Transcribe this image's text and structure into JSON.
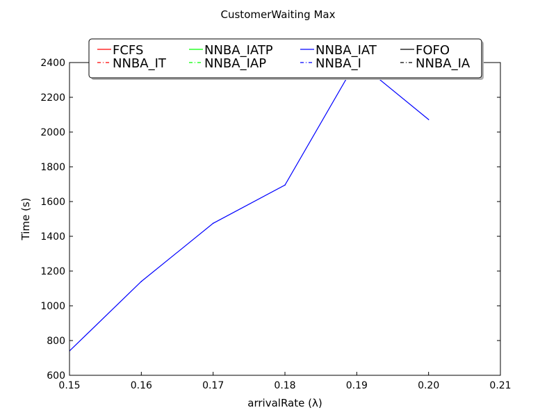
{
  "chart_data": {
    "type": "line",
    "title": "CustomerWaiting Max",
    "xlabel": "arrivalRate (λ)",
    "ylabel": "Time (s)",
    "xlim": [
      0.15,
      0.21
    ],
    "ylim": [
      600,
      2400
    ],
    "xticks": [
      "0.15",
      "0.16",
      "0.17",
      "0.18",
      "0.19",
      "0.20",
      "0.21"
    ],
    "yticks": [
      "600",
      "800",
      "1000",
      "1200",
      "1400",
      "1600",
      "1800",
      "2000",
      "2200",
      "2400"
    ],
    "grid": false,
    "legend_position": "top-center",
    "series": [
      {
        "name": "FCFS",
        "color": "#ff0000",
        "style": "solid",
        "x": [],
        "y": []
      },
      {
        "name": "NNBA_IATP",
        "color": "#00ff00",
        "style": "solid",
        "x": [],
        "y": []
      },
      {
        "name": "NNBA_IAT",
        "color": "#0000ff",
        "style": "solid",
        "x": [
          0.15,
          0.16,
          0.17,
          0.18,
          0.19,
          0.2
        ],
        "y": [
          740,
          1140,
          1475,
          1695,
          2410,
          2072
        ]
      },
      {
        "name": "FOFO",
        "color": "#000000",
        "style": "solid",
        "x": [],
        "y": []
      },
      {
        "name": "NNBA_IT",
        "color": "#ff0000",
        "style": "dashdot",
        "x": [],
        "y": []
      },
      {
        "name": "NNBA_IAP",
        "color": "#00ff00",
        "style": "dashdot",
        "x": [],
        "y": []
      },
      {
        "name": "NNBA_I",
        "color": "#0000ff",
        "style": "dashdot",
        "x": [],
        "y": []
      },
      {
        "name": "NNBA_IA",
        "color": "#000000",
        "style": "dashdot",
        "x": [],
        "y": []
      }
    ]
  }
}
